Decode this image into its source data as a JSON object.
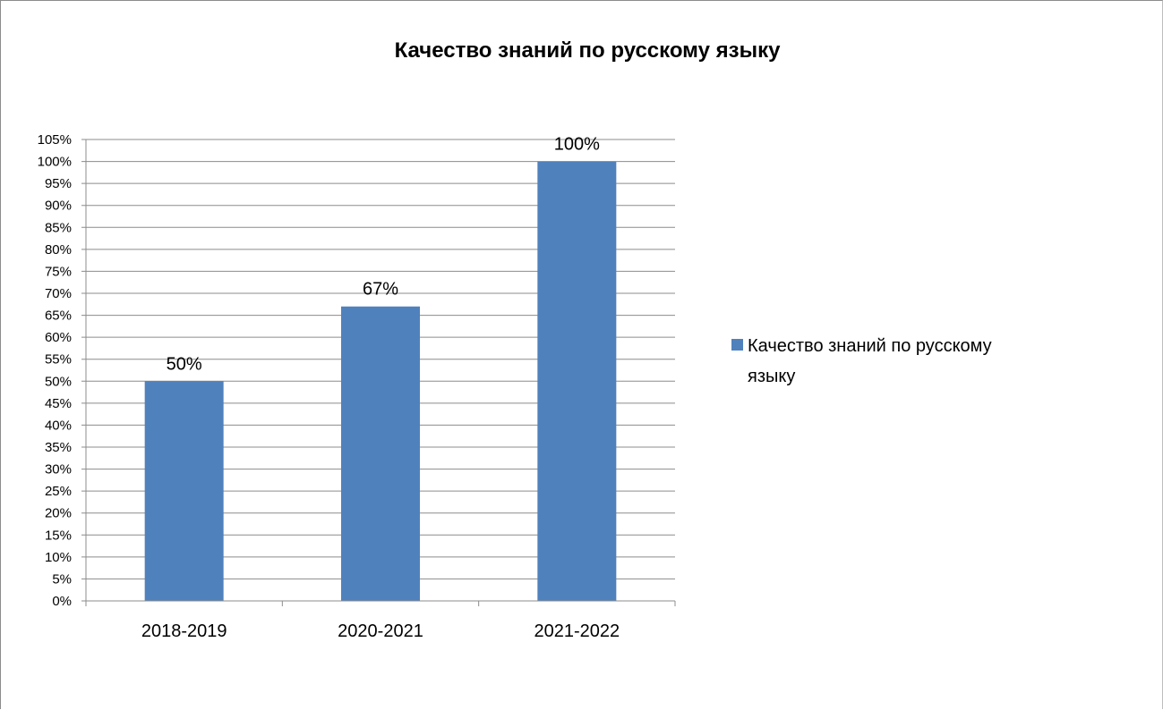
{
  "chart_data": {
    "type": "bar",
    "title": "Качество знаний по русскому языку",
    "categories": [
      "2018-2019",
      "2020-2021",
      "2021-2022"
    ],
    "series": [
      {
        "name": "Качество знаний по русскому языку",
        "values": [
          50,
          67,
          100
        ],
        "data_labels": [
          "50%",
          "67%",
          "100%"
        ],
        "color": "#4f81bd"
      }
    ],
    "yaxis": {
      "ylim": [
        0,
        105
      ],
      "step": 5,
      "tick_labels": [
        "0%",
        "5%",
        "10%",
        "15%",
        "20%",
        "25%",
        "30%",
        "35%",
        "40%",
        "45%",
        "50%",
        "55%",
        "60%",
        "65%",
        "70%",
        "75%",
        "80%",
        "85%",
        "90%",
        "95%",
        "100%",
        "105%"
      ]
    },
    "xlabel": "",
    "ylabel": "",
    "grid": true,
    "legend": {
      "placement": "right",
      "lines": [
        "Качество знаний по русскому",
        "языку"
      ]
    }
  }
}
